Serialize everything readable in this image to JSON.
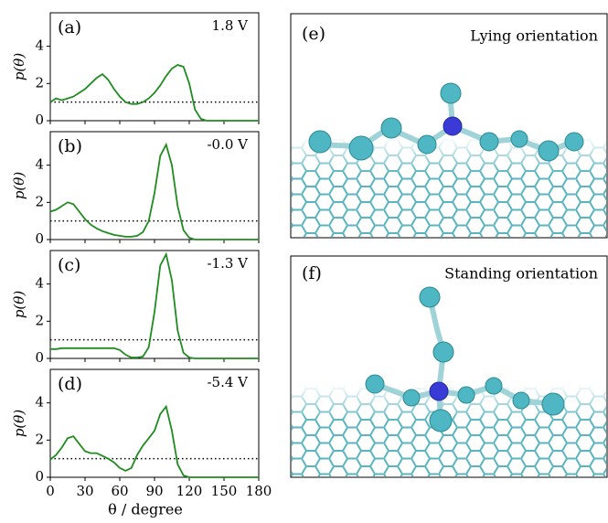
{
  "chart_data": [
    {
      "type": "line",
      "panel_label": "(a)",
      "annotation": "1.8 V",
      "ylabel": "p(θ)",
      "x": [
        0,
        5,
        10,
        15,
        20,
        25,
        30,
        35,
        40,
        45,
        50,
        55,
        60,
        65,
        70,
        75,
        80,
        85,
        90,
        95,
        100,
        105,
        110,
        115,
        120,
        125,
        130,
        135,
        140,
        145,
        150,
        155,
        160,
        165,
        170,
        175,
        180
      ],
      "values": [
        1.0,
        1.2,
        1.1,
        1.2,
        1.3,
        1.5,
        1.7,
        2.0,
        2.3,
        2.5,
        2.2,
        1.7,
        1.3,
        1.0,
        0.9,
        0.9,
        1.0,
        1.2,
        1.5,
        1.9,
        2.4,
        2.8,
        3.0,
        2.9,
        2.0,
        0.6,
        0.1,
        0,
        0,
        0,
        0,
        0,
        0,
        0,
        0,
        0,
        0
      ],
      "color": "#1f8c1f",
      "reference_line": 1,
      "xlim": [
        0,
        180
      ],
      "xticks": [
        0,
        30,
        60,
        90,
        120,
        150,
        180
      ],
      "ylim": [
        0,
        5.8
      ],
      "yticks": [
        0,
        2,
        4
      ],
      "show_xtick_labels": false
    },
    {
      "type": "line",
      "panel_label": "(b)",
      "annotation": "-0.0 V",
      "ylabel": "p(θ)",
      "x": [
        0,
        5,
        10,
        15,
        20,
        25,
        30,
        35,
        40,
        45,
        50,
        55,
        60,
        65,
        70,
        75,
        80,
        85,
        90,
        95,
        100,
        105,
        110,
        115,
        120,
        125,
        130,
        135,
        140,
        145,
        150,
        155,
        160,
        165,
        170,
        175,
        180
      ],
      "values": [
        1.5,
        1.6,
        1.8,
        2.0,
        1.9,
        1.5,
        1.1,
        0.8,
        0.6,
        0.45,
        0.35,
        0.25,
        0.2,
        0.15,
        0.15,
        0.2,
        0.4,
        1.0,
        2.5,
        4.5,
        5.1,
        4.0,
        1.8,
        0.5,
        0.1,
        0,
        0,
        0,
        0,
        0,
        0,
        0,
        0,
        0,
        0,
        0,
        0
      ],
      "color": "#1f8c1f",
      "reference_line": 1,
      "xlim": [
        0,
        180
      ],
      "xticks": [
        0,
        30,
        60,
        90,
        120,
        150,
        180
      ],
      "ylim": [
        0,
        5.8
      ],
      "yticks": [
        0,
        2,
        4
      ],
      "show_xtick_labels": false
    },
    {
      "type": "line",
      "panel_label": "(c)",
      "annotation": "-1.3 V",
      "ylabel": "p(θ)",
      "x": [
        0,
        5,
        10,
        15,
        20,
        25,
        30,
        35,
        40,
        45,
        50,
        55,
        60,
        65,
        70,
        75,
        80,
        85,
        90,
        95,
        100,
        105,
        110,
        115,
        120,
        125,
        130,
        135,
        140,
        145,
        150,
        155,
        160,
        165,
        170,
        175,
        180
      ],
      "values": [
        0.5,
        0.5,
        0.55,
        0.55,
        0.55,
        0.55,
        0.55,
        0.55,
        0.55,
        0.55,
        0.55,
        0.55,
        0.45,
        0.2,
        0.05,
        0.05,
        0.1,
        0.6,
        2.5,
        5.0,
        5.6,
        4.2,
        1.5,
        0.3,
        0.05,
        0,
        0,
        0,
        0,
        0,
        0,
        0,
        0,
        0,
        0,
        0,
        0
      ],
      "color": "#1f8c1f",
      "reference_line": 1,
      "xlim": [
        0,
        180
      ],
      "xticks": [
        0,
        30,
        60,
        90,
        120,
        150,
        180
      ],
      "ylim": [
        0,
        5.8
      ],
      "yticks": [
        0,
        2,
        4
      ],
      "show_xtick_labels": false
    },
    {
      "type": "line",
      "panel_label": "(d)",
      "annotation": "-5.4 V",
      "ylabel": "p(θ)",
      "xlabel": "θ / degree",
      "x": [
        0,
        5,
        10,
        15,
        20,
        25,
        30,
        35,
        40,
        45,
        50,
        55,
        60,
        65,
        70,
        75,
        80,
        85,
        90,
        95,
        100,
        105,
        110,
        115,
        120,
        125,
        130,
        135,
        140,
        145,
        150,
        155,
        160,
        165,
        170,
        175,
        180
      ],
      "values": [
        0.95,
        1.2,
        1.6,
        2.1,
        2.2,
        1.8,
        1.4,
        1.3,
        1.3,
        1.15,
        1.0,
        0.8,
        0.5,
        0.35,
        0.5,
        1.2,
        1.7,
        2.1,
        2.5,
        3.4,
        3.8,
        2.5,
        0.7,
        0.1,
        0,
        0,
        0,
        0,
        0,
        0,
        0,
        0,
        0,
        0,
        0,
        0,
        0
      ],
      "color": "#1f8c1f",
      "reference_line": 1,
      "xlim": [
        0,
        180
      ],
      "xticks": [
        0,
        30,
        60,
        90,
        120,
        150,
        180
      ],
      "ylim": [
        0,
        5.8
      ],
      "yticks": [
        0,
        2,
        4
      ],
      "show_xtick_labels": true
    }
  ],
  "panels": [
    {
      "label": "(e)",
      "caption": "Lying orientation"
    },
    {
      "label": "(f)",
      "caption": "Standing orientation"
    }
  ]
}
